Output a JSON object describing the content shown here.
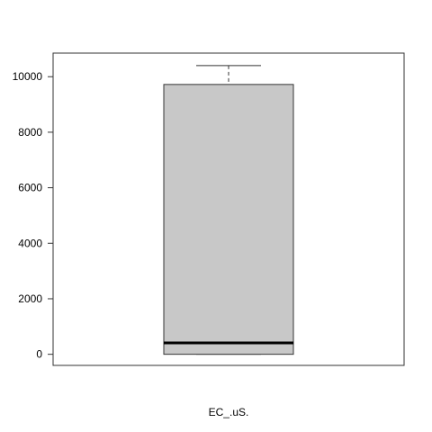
{
  "chart_data": {
    "type": "boxplot",
    "title": "",
    "xlabel": "EC_.uS.",
    "ylabel": "",
    "ylim": [
      -400,
      10850
    ],
    "yticks": [
      0,
      2000,
      4000,
      6000,
      8000,
      10000
    ],
    "grid": false,
    "legend": "none",
    "box": {
      "min": 0,
      "q1": 0,
      "median": 410,
      "q3": 9720,
      "max": 10400
    },
    "colors": {
      "box_fill": "#c8c8c8",
      "box_stroke": "#333333",
      "median": "#000000",
      "whisker": "#333333",
      "frame": "#333333"
    }
  }
}
